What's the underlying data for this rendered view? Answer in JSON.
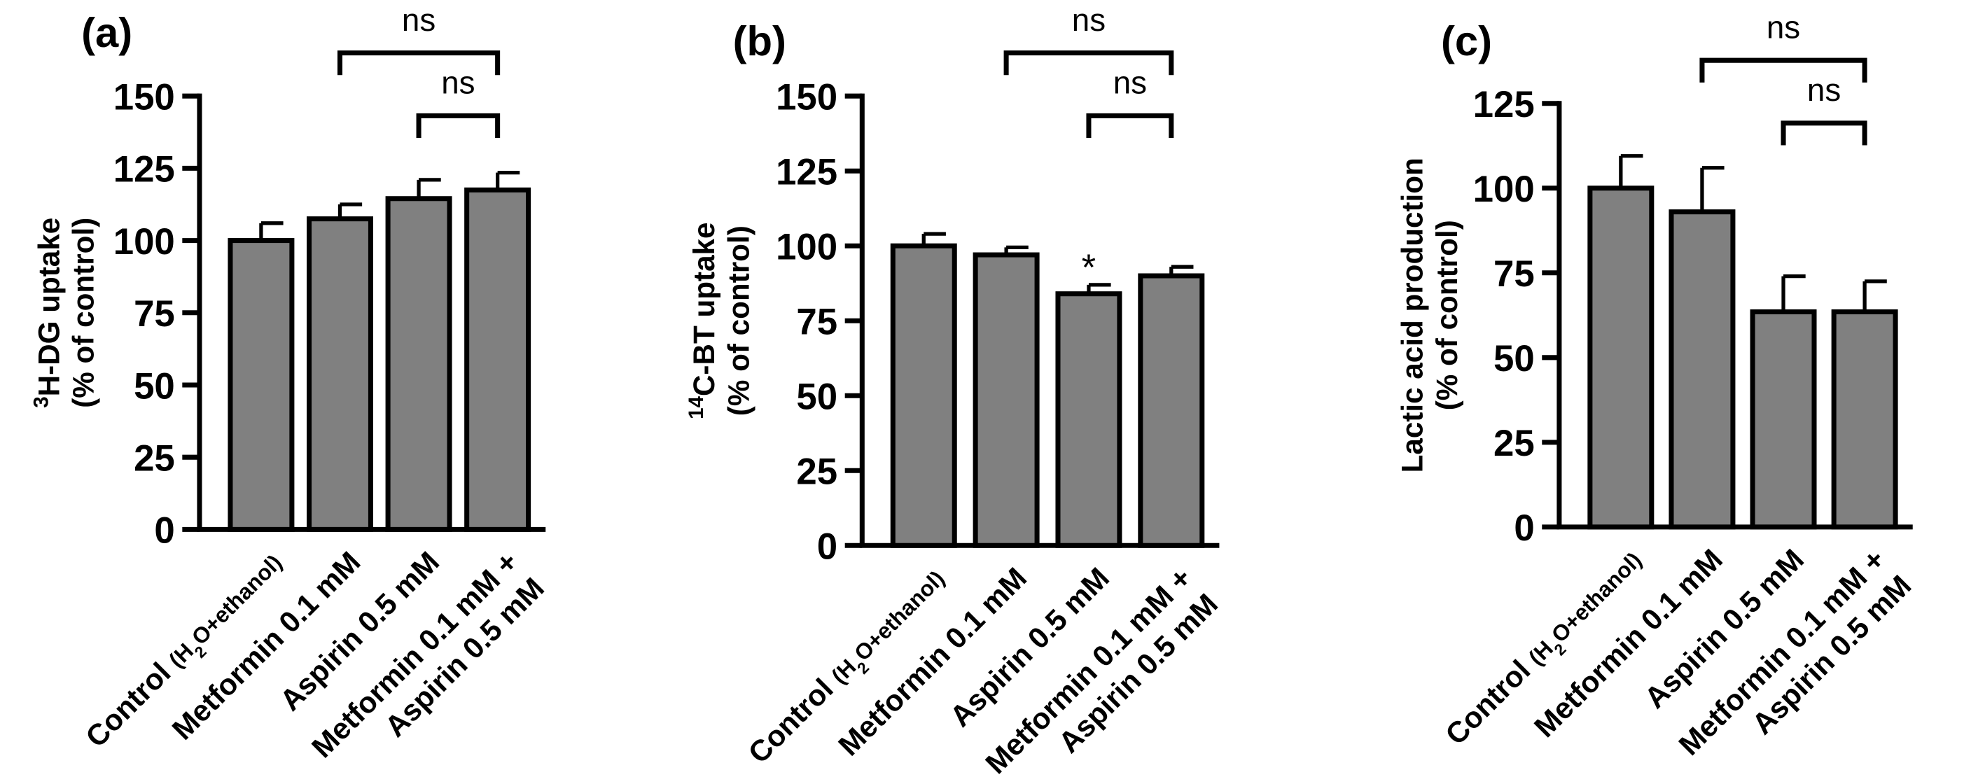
{
  "colors": {
    "bar": "#808080",
    "ink": "#000000"
  },
  "chart_data": [
    {
      "panel_label": "(a)",
      "type": "bar",
      "categories": [
        "Control (H2O+ethanol)",
        "Metformin 0.1 mM",
        "Aspirin 0.5 mM",
        "Metformin 0.1 mM + Aspirin 0.5 mM"
      ],
      "values": [
        100,
        107.5,
        114.5,
        117.5
      ],
      "errors": [
        6,
        5,
        6.5,
        6
      ],
      "ylabel": "3H-DG uptake",
      "ylabel2": "(% of control)",
      "ylim": [
        0,
        150
      ],
      "yticks": [
        "0",
        "25",
        "50",
        "75",
        "100",
        "125",
        "150"
      ],
      "annotations": [
        {
          "text": "ns",
          "type": "bracket",
          "from": 1,
          "to": 3,
          "level": 2
        },
        {
          "text": "ns",
          "type": "bracket",
          "from": 2,
          "to": 3,
          "level": 1
        }
      ]
    },
    {
      "panel_label": "(b)",
      "type": "bar",
      "categories": [
        "Control (H2O+ethanol)",
        "Metformin 0.1 mM",
        "Aspirin 0.5 mM",
        "Metformin 0.1 mM + Aspirin 0.5 mM"
      ],
      "values": [
        100,
        97,
        84,
        90
      ],
      "errors": [
        4,
        2.5,
        3,
        3
      ],
      "ylabel": "14C-BT uptake",
      "ylabel2": "(% of control)",
      "ylim": [
        0,
        150
      ],
      "yticks": [
        "0",
        "25",
        "50",
        "75",
        "100",
        "125",
        "150"
      ],
      "annotations": [
        {
          "text": "ns",
          "type": "bracket",
          "from": 1,
          "to": 3,
          "level": 2
        },
        {
          "text": "ns",
          "type": "bracket",
          "from": 2,
          "to": 3,
          "level": 1
        },
        {
          "text": "*",
          "type": "star",
          "at": 2
        }
      ]
    },
    {
      "panel_label": "(c)",
      "type": "bar",
      "categories": [
        "Control (H2O+ethanol)",
        "Metformin 0.1 mM",
        "Aspirin 0.5 mM",
        "Metformin 0.1 mM + Aspirin 0.5 mM"
      ],
      "values": [
        100,
        93,
        63.5,
        63.5
      ],
      "errors": [
        9.5,
        13,
        10.5,
        9
      ],
      "ylabel": "Lactic acid production",
      "ylabel2": "(% of control)",
      "ylim": [
        0,
        125
      ],
      "yticks": [
        "0",
        "25",
        "50",
        "75",
        "100",
        "125"
      ],
      "annotations": [
        {
          "text": "ns",
          "type": "bracket",
          "from": 1,
          "to": 3,
          "level": 2
        },
        {
          "text": "ns",
          "type": "bracket",
          "from": 2,
          "to": 3,
          "level": 1
        }
      ]
    }
  ]
}
